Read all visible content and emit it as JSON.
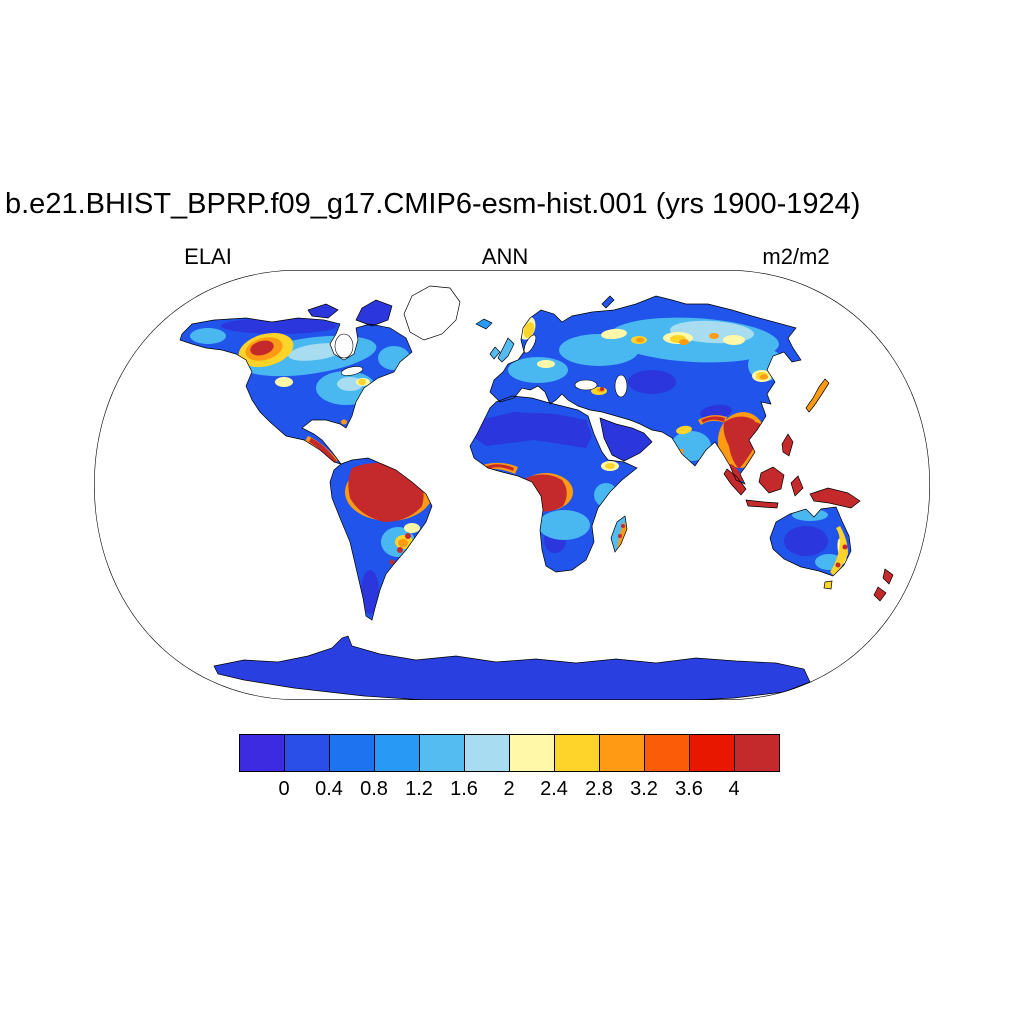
{
  "title": "b.e21.BHIST_BPRP.f09_g17.CMIP6-esm-hist.001 (yrs 1900-1924)",
  "subtitle": {
    "left": "ELAI",
    "center": "ANN",
    "right": "m2/m2"
  },
  "chart_data": {
    "type": "heatmap",
    "title": "b.e21.BHIST_BPRP.f09_g17.CMIP6-esm-hist.001 (yrs 1900-1924)",
    "variable": "ELAI",
    "season": "ANN",
    "units": "m2/m2",
    "projection": "robinson-world-map",
    "legend_position": "bottom",
    "levels": [
      0,
      0.4,
      0.8,
      1.2,
      1.6,
      2,
      2.4,
      2.8,
      3.2,
      3.6,
      4
    ],
    "tick_labels": [
      "0",
      "0.4",
      "0.8",
      "1.2",
      "1.6",
      "2",
      "2.4",
      "2.8",
      "3.2",
      "3.6",
      "4"
    ],
    "palette": [
      "#3C2BE0",
      "#2A4FE8",
      "#1E73F0",
      "#2899F5",
      "#55BCF2",
      "#A8DCF0",
      "#FFF8A8",
      "#FFD42A",
      "#FF9A14",
      "#FB5C08",
      "#E81800",
      "#C4292B"
    ],
    "ocean_color": "#ffffff",
    "coastline_color": "#000000",
    "notable_regions": [
      {
        "region": "Amazon basin",
        "value": "> 4"
      },
      {
        "region": "Congo basin",
        "value": "> 4"
      },
      {
        "region": "Southeast Asia / Indonesia / New Guinea",
        "value": "> 4"
      },
      {
        "region": "Central America coast",
        "value": "> 4"
      },
      {
        "region": "Pacific Northwest / British Columbia",
        "value": "2.8 - 4"
      },
      {
        "region": "Boreal Eurasia (Scandinavia, Siberia patches)",
        "value": "2 - 3.6"
      },
      {
        "region": "Sahara / Arabia / Central Australia / Central Asia",
        "value": "0 - 0.4"
      },
      {
        "region": "Antarctica and Greenland margin",
        "value": "0 - 0.4"
      },
      {
        "region": "Mid-latitude forests (E US, Europe, S Brazil, India)",
        "value": "1.2 - 2"
      }
    ]
  }
}
